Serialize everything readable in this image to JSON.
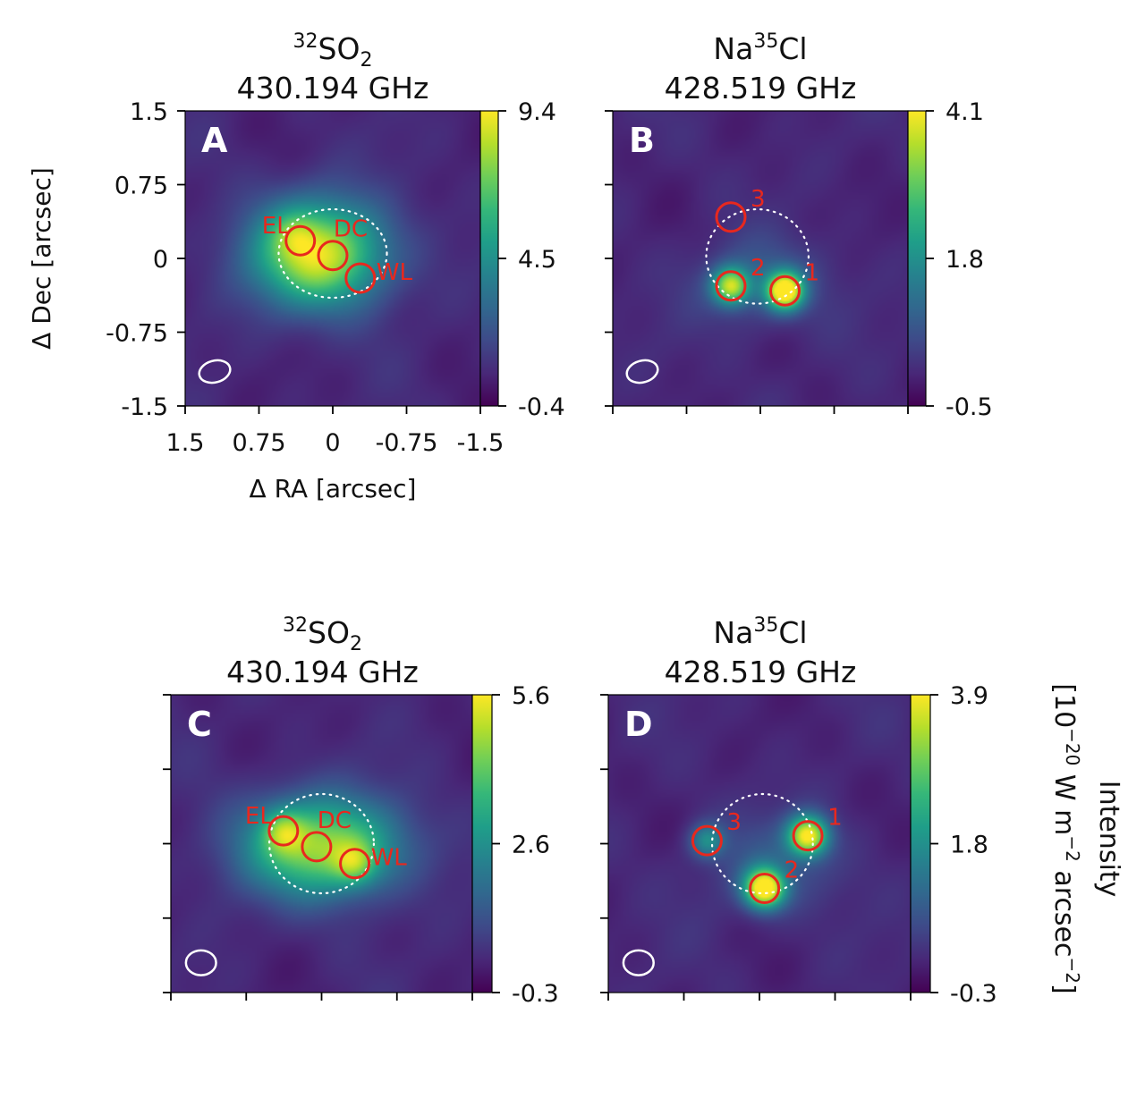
{
  "chart_data": [
    {
      "id": "A",
      "type": "heatmap",
      "panel_label": "A",
      "title_mass": "32",
      "title_species": "SO",
      "title_sub": "2",
      "title_species_after": "",
      "title_line2": "430.194 GHz",
      "xlabel": "Δ RA [arcsec]",
      "ylabel": "Δ Dec [arcsec]",
      "xlim": [
        1.5,
        -1.5
      ],
      "ylim": [
        -1.5,
        1.5
      ],
      "xticks": [
        "1.5",
        "0.75",
        "0",
        "-0.75",
        "-1.5"
      ],
      "yticks": [
        "-1.5",
        "-0.75",
        "0",
        "0.75",
        "1.5"
      ],
      "show_tick_labels": true,
      "colorbar": {
        "ticks": [
          "-0.4",
          "4.5",
          "9.4"
        ],
        "min": -0.4,
        "max": 9.4
      },
      "dotted_ring": {
        "center": [
          0.0,
          0.05
        ],
        "radius_x": 0.55,
        "radius_y": 0.45
      },
      "emission_blobs": [
        {
          "center": [
            0.15,
            0.05
          ],
          "sigma": [
            0.48,
            0.38
          ],
          "amplitude": 0.85
        },
        {
          "center": [
            0.4,
            0.25
          ],
          "sigma": [
            0.15,
            0.15
          ],
          "amplitude": 0.15
        }
      ],
      "apertures": [
        {
          "label": "EL",
          "center": [
            0.33,
            0.18
          ]
        },
        {
          "label": "DC",
          "center": [
            0.0,
            0.03
          ]
        },
        {
          "label": "WL",
          "center": [
            -0.28,
            -0.2
          ]
        }
      ],
      "beam": {
        "center": [
          1.2,
          -1.15
        ],
        "width": 0.32,
        "height": 0.22,
        "angle": -15
      }
    },
    {
      "id": "B",
      "type": "heatmap",
      "panel_label": "B",
      "title_mass": "35",
      "title_species": "Na",
      "title_sub": "",
      "title_species_after": "Cl",
      "title_line2": "428.519 GHz",
      "xlim": [
        1.5,
        -1.5
      ],
      "ylim": [
        -1.5,
        1.5
      ],
      "show_tick_labels": false,
      "colorbar": {
        "ticks": [
          "-0.5",
          "1.8",
          "4.1"
        ],
        "min": -0.5,
        "max": 4.1
      },
      "dotted_ring": {
        "center": [
          0.03,
          0.02
        ],
        "radius_x": 0.52,
        "radius_y": 0.48
      },
      "emission_blobs": [
        {
          "center": [
            0.3,
            -0.28
          ],
          "sigma": [
            0.13,
            0.13
          ],
          "amplitude": 0.7
        },
        {
          "center": [
            -0.25,
            -0.33
          ],
          "sigma": [
            0.13,
            0.13
          ],
          "amplitude": 0.95
        },
        {
          "center": [
            0.0,
            -0.25
          ],
          "sigma": [
            0.45,
            0.3
          ],
          "amplitude": 0.2
        }
      ],
      "apertures": [
        {
          "label": "1",
          "center": [
            -0.25,
            -0.33
          ]
        },
        {
          "label": "2",
          "center": [
            0.3,
            -0.28
          ]
        },
        {
          "label": "3",
          "center": [
            0.3,
            0.42
          ]
        }
      ],
      "beam": {
        "center": [
          1.2,
          -1.15
        ],
        "width": 0.32,
        "height": 0.22,
        "angle": -15
      }
    },
    {
      "id": "C",
      "type": "heatmap",
      "panel_label": "C",
      "title_mass": "32",
      "title_species": "SO",
      "title_sub": "2",
      "title_species_after": "",
      "title_line2": "430.194 GHz",
      "xlim": [
        1.5,
        -1.5
      ],
      "ylim": [
        -1.5,
        1.5
      ],
      "show_tick_labels": false,
      "colorbar": {
        "ticks": [
          "-0.3",
          "2.6",
          "5.6"
        ],
        "min": -0.3,
        "max": 5.6
      },
      "dotted_ring": {
        "center": [
          0.0,
          0.0
        ],
        "radius_x": 0.52,
        "radius_y": 0.5
      },
      "emission_blobs": [
        {
          "center": [
            0.0,
            -0.03
          ],
          "sigma": [
            0.55,
            0.35
          ],
          "amplitude": 0.75
        },
        {
          "center": [
            0.38,
            0.13
          ],
          "sigma": [
            0.15,
            0.15
          ],
          "amplitude": 0.3
        },
        {
          "center": [
            -0.33,
            -0.2
          ],
          "sigma": [
            0.15,
            0.15
          ],
          "amplitude": 0.3
        }
      ],
      "apertures": [
        {
          "label": "EL",
          "center": [
            0.38,
            0.13
          ]
        },
        {
          "label": "DC",
          "center": [
            0.05,
            -0.03
          ]
        },
        {
          "label": "WL",
          "center": [
            -0.33,
            -0.2
          ]
        }
      ],
      "beam": {
        "center": [
          1.2,
          -1.2
        ],
        "width": 0.3,
        "height": 0.25,
        "angle": 0
      }
    },
    {
      "id": "D",
      "type": "heatmap",
      "panel_label": "D",
      "title_mass": "35",
      "title_species": "Na",
      "title_sub": "",
      "title_species_after": "Cl",
      "title_line2": "428.519 GHz",
      "xlim": [
        1.5,
        -1.5
      ],
      "ylim": [
        -1.5,
        1.5
      ],
      "show_tick_labels": false,
      "colorbar": {
        "ticks": [
          "-0.3",
          "1.8",
          "3.9"
        ],
        "min": -0.3,
        "max": 3.9
      },
      "dotted_ring": {
        "center": [
          -0.03,
          0.0
        ],
        "radius_x": 0.5,
        "radius_y": 0.5
      },
      "emission_blobs": [
        {
          "center": [
            -0.48,
            0.08
          ],
          "sigma": [
            0.14,
            0.14
          ],
          "amplitude": 0.85
        },
        {
          "center": [
            -0.05,
            -0.45
          ],
          "sigma": [
            0.14,
            0.14
          ],
          "amplitude": 0.95
        },
        {
          "center": [
            0.52,
            0.03
          ],
          "sigma": [
            0.12,
            0.12
          ],
          "amplitude": 0.35
        },
        {
          "center": [
            -0.15,
            -0.2
          ],
          "sigma": [
            0.5,
            0.35
          ],
          "amplitude": 0.15
        }
      ],
      "apertures": [
        {
          "label": "1",
          "center": [
            -0.48,
            0.08
          ]
        },
        {
          "label": "2",
          "center": [
            -0.05,
            -0.45
          ]
        },
        {
          "label": "3",
          "center": [
            0.52,
            0.03
          ]
        }
      ],
      "beam": {
        "center": [
          1.2,
          -1.2
        ],
        "width": 0.3,
        "height": 0.25,
        "angle": 0
      }
    }
  ],
  "colorbar_label_line1": "Intensity",
  "colorbar_label_line2_base": "[10",
  "colorbar_label_line2_exp1": "−20",
  "colorbar_label_line2_mid": " W m",
  "colorbar_label_line2_exp2": "−2",
  "colorbar_label_line2_mid2": " arcsec",
  "colorbar_label_line2_exp3": "−2",
  "colorbar_label_line2_end": "]",
  "colors": {
    "background": "#440154",
    "aperture": "#e8281e",
    "ring": "#ffffff",
    "panel_letter": "#ffffff",
    "colormap": [
      "#440154",
      "#482878",
      "#3e4a89",
      "#31688e",
      "#26828e",
      "#1f9e89",
      "#35b779",
      "#6ece58",
      "#b5de2b",
      "#fde725"
    ]
  }
}
